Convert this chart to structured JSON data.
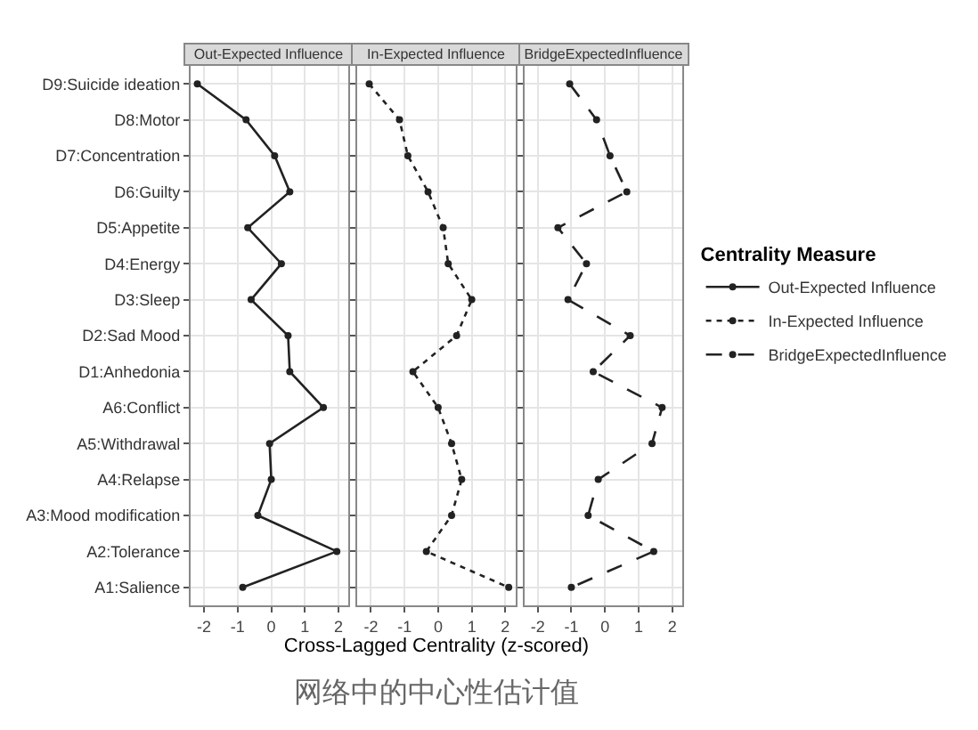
{
  "chart_data": [
    {
      "type": "line",
      "orientation": "horizontal",
      "title": "Out-Expected Influence",
      "categories": [
        "D9:Suicide ideation",
        "D8:Motor",
        "D7:Concentration",
        "D6:Guilty",
        "D5:Appetite",
        "D4:Energy",
        "D3:Sleep",
        "D2:Sad Mood",
        "D1:Anhedonia",
        "A6:Conflict",
        "A5:Withdrawal",
        "A4:Relapse",
        "A3:Mood modification",
        "A2:Tolerance",
        "A1:Salience"
      ],
      "series": [
        {
          "name": "Out-Expected Influence",
          "color": "#222222",
          "line_style": "solid",
          "values": [
            -2.2,
            -0.75,
            0.1,
            0.55,
            -0.7,
            0.3,
            -0.6,
            0.5,
            0.55,
            1.55,
            -0.05,
            0,
            -0.4,
            1.95,
            -0.85
          ]
        }
      ],
      "xlim": [
        -2.4,
        2.3
      ],
      "xticks": [
        -2,
        -1,
        0,
        1,
        2
      ],
      "grid": true,
      "marker": "circle",
      "annotations": [
        "网络中的中心性估计值"
      ]
    },
    {
      "type": "line",
      "orientation": "horizontal",
      "title": "In-Expected Influence",
      "xlabel": "Cross-Lagged Centrality (z-scored)",
      "categories": [
        "D9:Suicide ideation",
        "D8:Motor",
        "D7:Concentration",
        "D6:Guilty",
        "D5:Appetite",
        "D4:Energy",
        "D3:Sleep",
        "D2:Sad Mood",
        "D1:Anhedonia",
        "A6:Conflict",
        "A5:Withdrawal",
        "A4:Relapse",
        "A3:Mood modification",
        "A2:Tolerance",
        "A1:Salience"
      ],
      "series": [
        {
          "name": "In-Expected Influence",
          "color": "#222222",
          "line_style": "dotted",
          "values": [
            -2.05,
            -1.15,
            -0.9,
            -0.3,
            0.15,
            0.3,
            1.0,
            0.55,
            -0.75,
            0,
            0.4,
            0.7,
            0.4,
            -0.35,
            2.1
          ]
        }
      ],
      "xlim": [
        -2.4,
        2.3
      ],
      "xticks": [
        -2,
        -1,
        0,
        1,
        2
      ],
      "grid": true,
      "marker": "circle",
      "tick_labels": "x"
    },
    {
      "type": "line",
      "orientation": "horizontal",
      "title": "BridgeExpectedInfluence",
      "legend_title": "Centrality Measure",
      "legend": "right",
      "categories": [
        "D9:Suicide ideation",
        "D8:Motor",
        "D7:Concentration",
        "D6:Guilty",
        "D5:Appetite",
        "D4:Energy",
        "D3:Sleep",
        "D2:Sad Mood",
        "D1:Anhedonia",
        "A6:Conflict",
        "A5:Withdrawal",
        "A4:Relapse",
        "A3:Mood modification",
        "A2:Tolerance",
        "A1:Salience"
      ],
      "series": [
        {
          "name": "BridgeExpectedInfluence",
          "color": "#222222",
          "line_style": "dashed",
          "values": [
            -1.05,
            -0.25,
            0.15,
            0.65,
            -1.4,
            -0.55,
            -1.1,
            0.75,
            -0.35,
            1.7,
            1.4,
            -0.2,
            -0.5,
            1.45,
            -1.0
          ]
        }
      ],
      "xlim": [
        -2.4,
        2.3
      ],
      "xticks": [
        -2,
        -1,
        0,
        1,
        2
      ],
      "grid": true,
      "marker": "circle",
      "tick_labels": "x"
    }
  ]
}
